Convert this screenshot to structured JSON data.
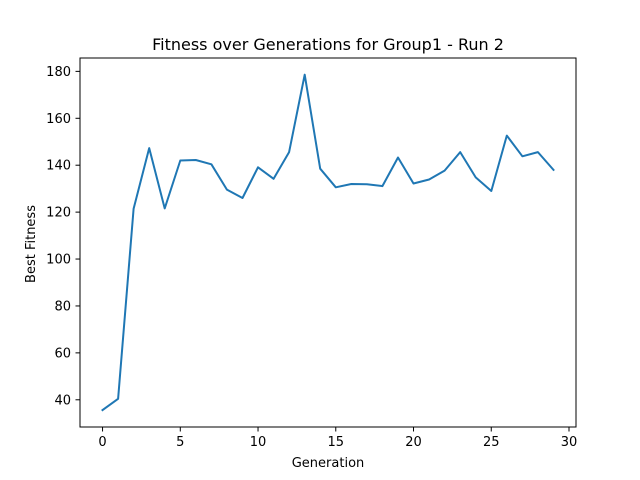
{
  "chart_data": {
    "type": "line",
    "title": "Fitness over Generations for Group1 - Run 2",
    "xlabel": "Generation",
    "ylabel": "Best Fitness",
    "xlim": [
      -1.45,
      30.45
    ],
    "ylim": [
      28.4,
      185.7
    ],
    "xticks": [
      0,
      5,
      10,
      15,
      20,
      25,
      30
    ],
    "yticks": [
      40,
      60,
      80,
      100,
      120,
      140,
      160,
      180
    ],
    "grid": false,
    "line_color": "#1f77b4",
    "series": [
      {
        "x": [
          0,
          1,
          2,
          3,
          4,
          5,
          6,
          7,
          8,
          9,
          10,
          11,
          12,
          13,
          14,
          15,
          16,
          17,
          18,
          19,
          20,
          21,
          22,
          23,
          24,
          25,
          26,
          27,
          28,
          29
        ],
        "values": [
          35.6,
          40.4,
          121.4,
          147.3,
          121.6,
          142.0,
          142.2,
          140.4,
          129.6,
          126.0,
          139.1,
          134.2,
          145.6,
          178.6,
          138.5,
          130.6,
          132.0,
          131.9,
          131.1,
          143.3,
          132.2,
          133.9,
          137.7,
          145.6,
          134.8,
          129.0,
          152.6,
          143.8,
          145.6,
          138.0
        ]
      }
    ]
  }
}
